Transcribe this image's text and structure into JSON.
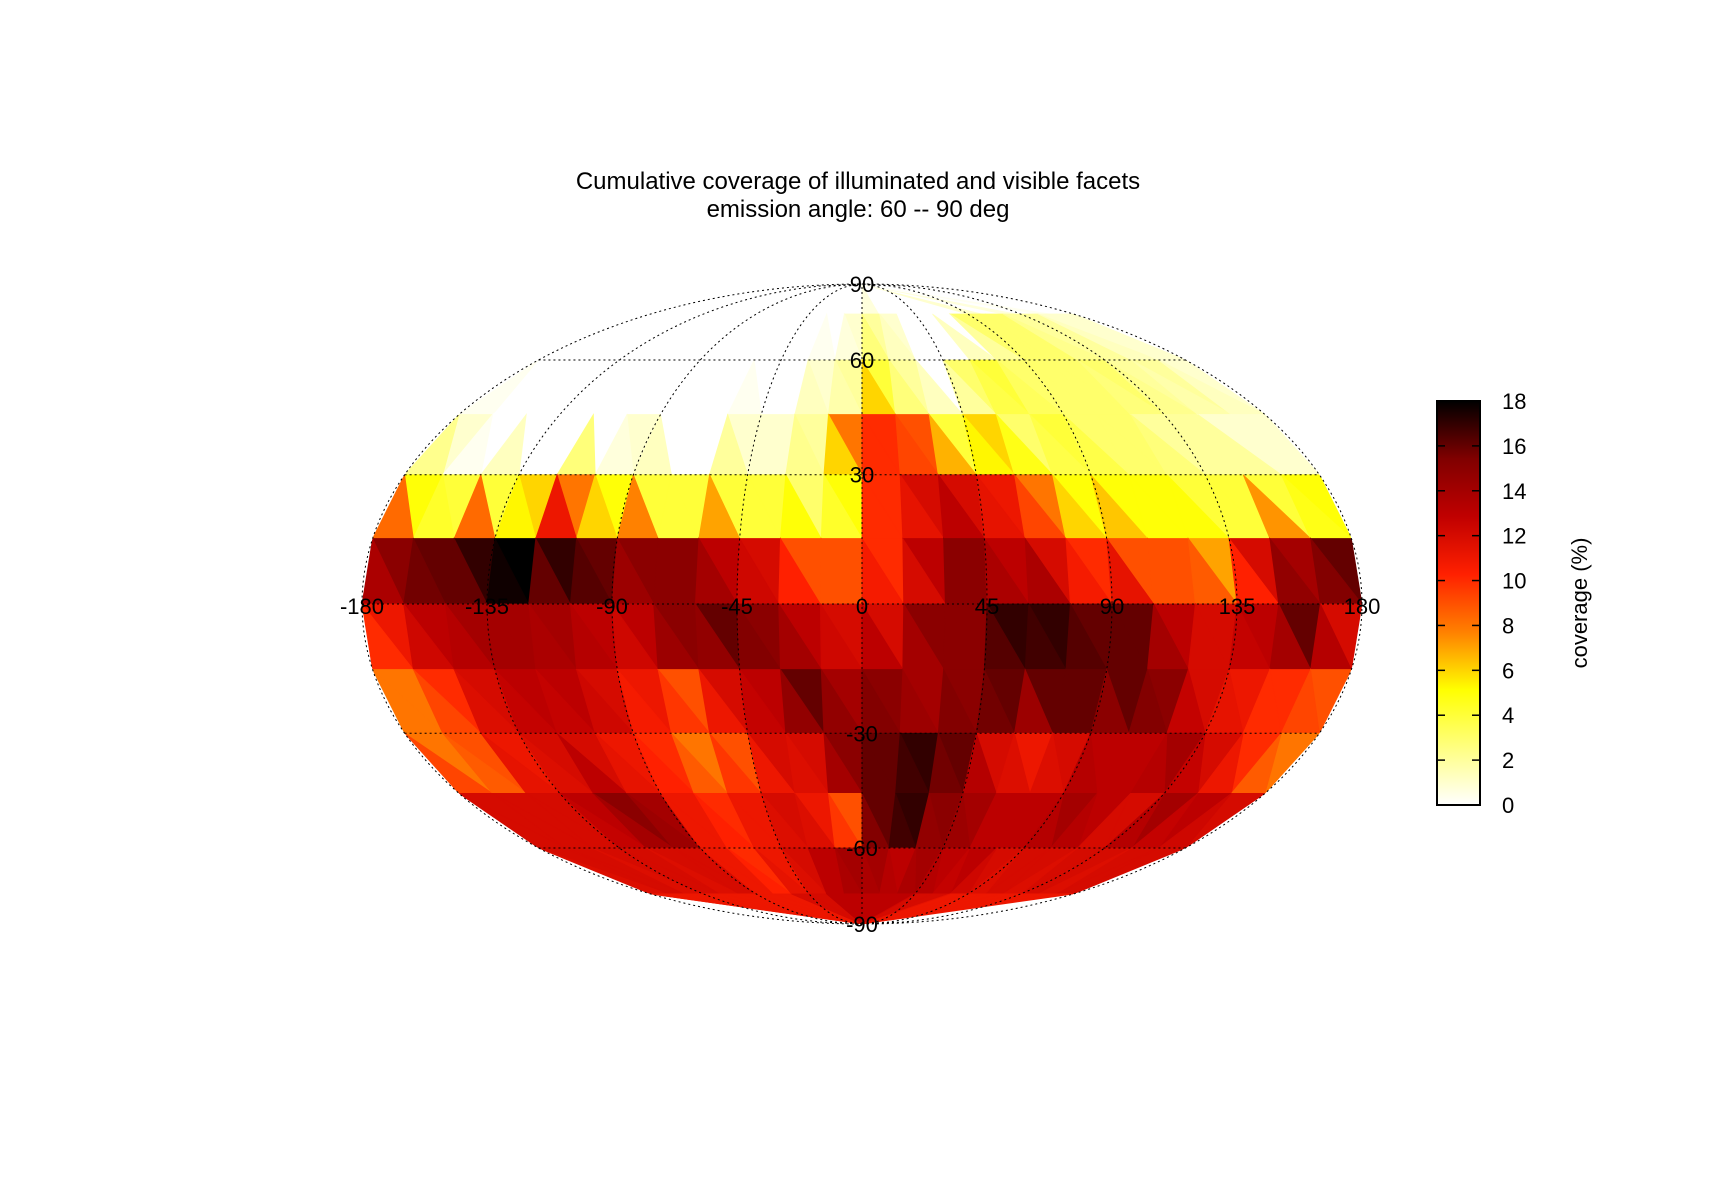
{
  "chart_data": {
    "type": "heatmap",
    "projection": "Mollweide",
    "title": "Cumulative coverage of illuminated and visible facets",
    "subtitle": "emission angle: 60 -- 90 deg",
    "lon_ticks": [
      "-180",
      "-135",
      "-90",
      "-45",
      "0",
      "45",
      "90",
      "135",
      "180"
    ],
    "lat_ticks": [
      "90",
      "60",
      "30",
      "-30",
      "-60",
      "-90"
    ],
    "colorbar": {
      "label": "coverage (%)",
      "range": [
        0,
        18
      ],
      "ticks": [
        "0",
        "2",
        "4",
        "6",
        "8",
        "10",
        "12",
        "14",
        "16",
        "18"
      ],
      "colormap": [
        "#ffffff",
        "#ffff80",
        "#ffff00",
        "#ff8000",
        "#ff2000",
        "#c00000",
        "#800000",
        "#000000"
      ]
    },
    "grid": "on",
    "bands": [
      {
        "lat": [
          75,
          90
        ],
        "values": [
          0,
          0,
          0,
          0,
          0,
          0,
          0,
          0,
          0,
          0,
          0,
          0,
          0,
          0,
          0,
          0,
          0,
          0,
          0,
          0,
          0,
          0,
          0,
          0
        ]
      },
      {
        "lat": [
          60,
          75
        ],
        "values": [
          0,
          0,
          0,
          0,
          0,
          0,
          0,
          0,
          0,
          0,
          0,
          1,
          2,
          1,
          0,
          0,
          0,
          3,
          3,
          3,
          2,
          2,
          1,
          1
        ]
      },
      {
        "lat": [
          45,
          60
        ],
        "values": [
          0,
          0,
          0,
          0,
          0,
          0,
          0,
          0,
          0,
          0,
          1,
          2,
          4,
          2,
          0,
          3,
          4,
          3,
          3,
          3,
          3,
          2,
          2,
          1
        ]
      },
      {
        "lat": [
          30,
          45
        ],
        "values": [
          1,
          0,
          0,
          0,
          0,
          1,
          0,
          0,
          1,
          1,
          2,
          8,
          10,
          9,
          4,
          6,
          3,
          4,
          3,
          3,
          2,
          2,
          1,
          1
        ]
      },
      {
        "lat": [
          15,
          30
        ],
        "values": [
          5,
          4,
          4,
          6,
          8,
          5,
          4,
          4,
          4,
          4,
          3,
          5,
          10,
          12,
          12,
          11,
          8,
          5,
          5,
          5,
          4,
          4,
          4,
          5
        ]
      },
      {
        "lat": [
          0,
          15
        ],
        "values": [
          15,
          16,
          17,
          18,
          17,
          16,
          15,
          15,
          13,
          12,
          9,
          9,
          10,
          13,
          15,
          13,
          12,
          10,
          9,
          9,
          7,
          12,
          14,
          16
        ]
      },
      {
        "lat": [
          -15,
          0
        ],
        "values": [
          11,
          13,
          14,
          14,
          14,
          13,
          13,
          15,
          16,
          15,
          13,
          12,
          12,
          15,
          15,
          17,
          17,
          16,
          16,
          13,
          12,
          13,
          16,
          12
        ]
      },
      {
        "lat": [
          -30,
          -15
        ],
        "values": [
          8,
          10,
          12,
          13,
          13,
          12,
          11,
          9,
          12,
          13,
          16,
          14,
          15,
          14,
          15,
          16,
          16,
          16,
          16,
          15,
          12,
          11,
          10,
          9
        ]
      },
      {
        "lat": [
          -45,
          -30
        ],
        "values": [
          8,
          9,
          11,
          12,
          12,
          11,
          10,
          8,
          9,
          12,
          12,
          15,
          16,
          17,
          16,
          12,
          11,
          12,
          13,
          13,
          14,
          12,
          10,
          8
        ]
      },
      {
        "lat": [
          -60,
          -45
        ],
        "values": [
          12,
          12,
          12,
          13,
          15,
          14,
          11,
          10,
          11,
          12,
          11,
          9,
          16,
          17,
          15,
          14,
          13,
          13,
          14,
          13,
          12,
          14,
          13,
          12
        ]
      },
      {
        "lat": [
          -75,
          -60
        ],
        "values": [
          12,
          12,
          12,
          12,
          12,
          12,
          11,
          10,
          11,
          12,
          13,
          14,
          14,
          13,
          14,
          13,
          13,
          12,
          12,
          12,
          12,
          12,
          12,
          12
        ]
      },
      {
        "lat": [
          -90,
          -75
        ],
        "values": [
          11,
          11,
          11,
          11,
          11,
          11,
          11,
          11,
          12,
          12,
          13,
          13,
          13,
          13,
          13,
          12,
          12,
          11,
          11,
          11,
          11,
          11,
          11,
          11
        ]
      }
    ]
  }
}
